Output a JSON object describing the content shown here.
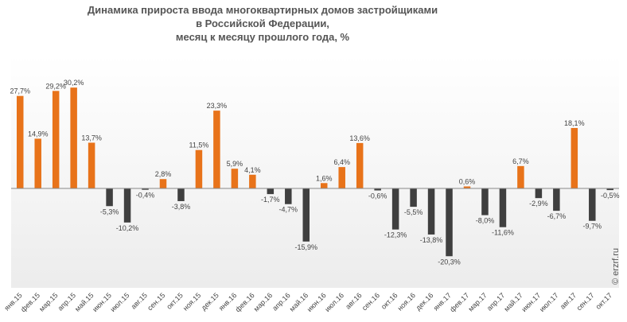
{
  "title_lines": [
    "Динамика прироста ввода многоквартирных домов застройщиками",
    "в Российской  Федерации,",
    "месяц к месяцу прошлого года, %"
  ],
  "watermark": "© erzrf.ru",
  "colors": {
    "positive": "#e8731a",
    "negative": "#3f3f3f",
    "axis": "#888888"
  },
  "chart_data": {
    "type": "bar",
    "title": "Динамика прироста ввода многоквартирных домов застройщиками в Российской  Федерации, месяц к месяцу прошлого года, %",
    "xlabel": "",
    "ylabel": "",
    "ylim": [
      -30,
      38
    ],
    "grid": false,
    "legend": "none",
    "categories": [
      "янв.15",
      "фев.15",
      "мар.15",
      "апр.15",
      "май.15",
      "июн.15",
      "июл.15",
      "авг.15",
      "сен.15",
      "окт.15",
      "ноя.15",
      "дек.15",
      "янв.16",
      "фев.16",
      "мар.16",
      "апр.16",
      "май.16",
      "июн.16",
      "июл.16",
      "авг.16",
      "сен.16",
      "окт.16",
      "ноя.16",
      "дек.16",
      "янв.17",
      "фев.17",
      "мар.17",
      "апр.17",
      "май.17",
      "июн.17",
      "июл.17",
      "авг.17",
      "сен.17",
      "окт.17"
    ],
    "values": [
      27.7,
      14.9,
      29.2,
      30.2,
      13.7,
      -5.3,
      -10.2,
      -0.4,
      2.8,
      -3.8,
      11.5,
      23.3,
      5.9,
      4.1,
      -1.7,
      -4.7,
      -15.9,
      1.6,
      6.4,
      13.6,
      -0.6,
      -12.3,
      -5.5,
      -13.8,
      -20.3,
      0.6,
      -8.0,
      -11.6,
      6.7,
      -2.9,
      -6.7,
      18.1,
      -9.7,
      -0.5
    ],
    "data_labels": [
      "27,7%",
      "14,9%",
      "29,2%",
      "30,2%",
      "13,7%",
      "-5,3%",
      "-10,2%",
      "-0,4%",
      "2,8%",
      "-3,8%",
      "11,5%",
      "23,3%",
      "5,9%",
      "4,1%",
      "-1,7%",
      "-4,7%",
      "-15,9%",
      "1,6%",
      "6,4%",
      "13,6%",
      "-0,6%",
      "-12,3%",
      "-5,5%",
      "-13,8%",
      "-20,3%",
      "0,6%",
      "-8,0%",
      "-11,6%",
      "6,7%",
      "-2,9%",
      "-6,7%",
      "18,1%",
      "-9,7%",
      "-0,5%"
    ]
  }
}
